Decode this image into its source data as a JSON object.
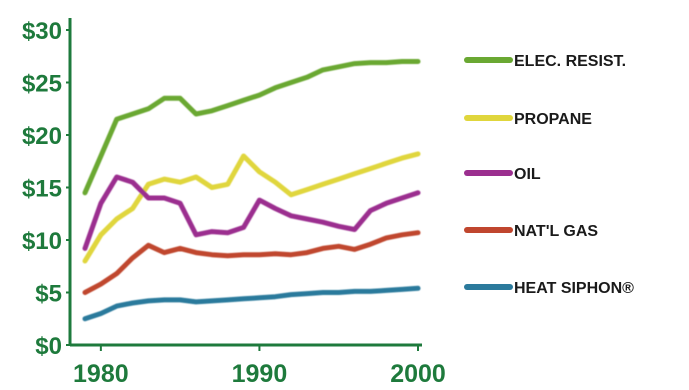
{
  "chart_data": {
    "type": "line",
    "title": "",
    "xlabel": "",
    "ylabel": "",
    "x_ticks": [
      "1980",
      "1990",
      "2000"
    ],
    "y_ticks": [
      "$0",
      "$5",
      "$10",
      "$15",
      "$20",
      "$25",
      "$30"
    ],
    "xlim": [
      1979,
      2000
    ],
    "ylim": [
      0,
      30
    ],
    "grid": false,
    "legend_position": "right",
    "colors": {
      "axis": "#1e7a3c",
      "tick_label": "#1e7a3c",
      "legend_text": "#1a1a1a"
    },
    "series": [
      {
        "name": "ELEC. RESIST.",
        "color": "#6aa832",
        "x": [
          1979,
          1980,
          1981,
          1982,
          1983,
          1984,
          1985,
          1986,
          1987,
          1988,
          1989,
          1990,
          1991,
          1992,
          1993,
          1994,
          1995,
          1996,
          1997,
          1998,
          1999,
          2000
        ],
        "values": [
          14.5,
          18,
          21.5,
          22,
          22.5,
          23.5,
          23.5,
          22,
          22.3,
          22.8,
          23.3,
          23.8,
          24.5,
          25,
          25.5,
          26.2,
          26.5,
          26.8,
          26.9,
          26.9,
          27,
          27
        ]
      },
      {
        "name": "PROPANE",
        "color": "#e0d63c",
        "x": [
          1979,
          1980,
          1981,
          1982,
          1983,
          1984,
          1985,
          1986,
          1987,
          1988,
          1989,
          1990,
          1991,
          1992,
          1993,
          1994,
          1995,
          1996,
          1997,
          1998,
          1999,
          2000
        ],
        "values": [
          8,
          10.5,
          12,
          13,
          15.3,
          15.8,
          15.5,
          16,
          15,
          15.3,
          18,
          16.5,
          15.5,
          14.3,
          14.8,
          15.3,
          15.8,
          16.3,
          16.8,
          17.3,
          17.8,
          18.2
        ]
      },
      {
        "name": "OIL",
        "color": "#9b2f8f",
        "x": [
          1979,
          1980,
          1981,
          1982,
          1983,
          1984,
          1985,
          1986,
          1987,
          1988,
          1989,
          1990,
          1991,
          1992,
          1993,
          1994,
          1995,
          1996,
          1997,
          1998,
          1999,
          2000
        ],
        "values": [
          9.2,
          13.5,
          16,
          15.5,
          14,
          14,
          13.5,
          10.5,
          10.8,
          10.7,
          11.2,
          13.8,
          13,
          12.3,
          12,
          11.7,
          11.3,
          11,
          12.8,
          13.5,
          14,
          14.5
        ]
      },
      {
        "name": "NAT'L GAS",
        "color": "#c0462e",
        "x": [
          1979,
          1980,
          1981,
          1982,
          1983,
          1984,
          1985,
          1986,
          1987,
          1988,
          1989,
          1990,
          1991,
          1992,
          1993,
          1994,
          1995,
          1996,
          1997,
          1998,
          1999,
          2000
        ],
        "values": [
          5,
          5.8,
          6.8,
          8.3,
          9.5,
          8.8,
          9.2,
          8.8,
          8.6,
          8.5,
          8.6,
          8.6,
          8.7,
          8.6,
          8.8,
          9.2,
          9.4,
          9.1,
          9.6,
          10.2,
          10.5,
          10.7
        ]
      },
      {
        "name": "HEAT SIPHON®",
        "color": "#2b7a9c",
        "x": [
          1979,
          1980,
          1981,
          1982,
          1983,
          1984,
          1985,
          1986,
          1987,
          1988,
          1989,
          1990,
          1991,
          1992,
          1993,
          1994,
          1995,
          1996,
          1997,
          1998,
          1999,
          2000
        ],
        "values": [
          2.5,
          3,
          3.7,
          4,
          4.2,
          4.3,
          4.3,
          4.1,
          4.2,
          4.3,
          4.4,
          4.5,
          4.6,
          4.8,
          4.9,
          5,
          5,
          5.1,
          5.1,
          5.2,
          5.3,
          5.4
        ]
      }
    ]
  }
}
